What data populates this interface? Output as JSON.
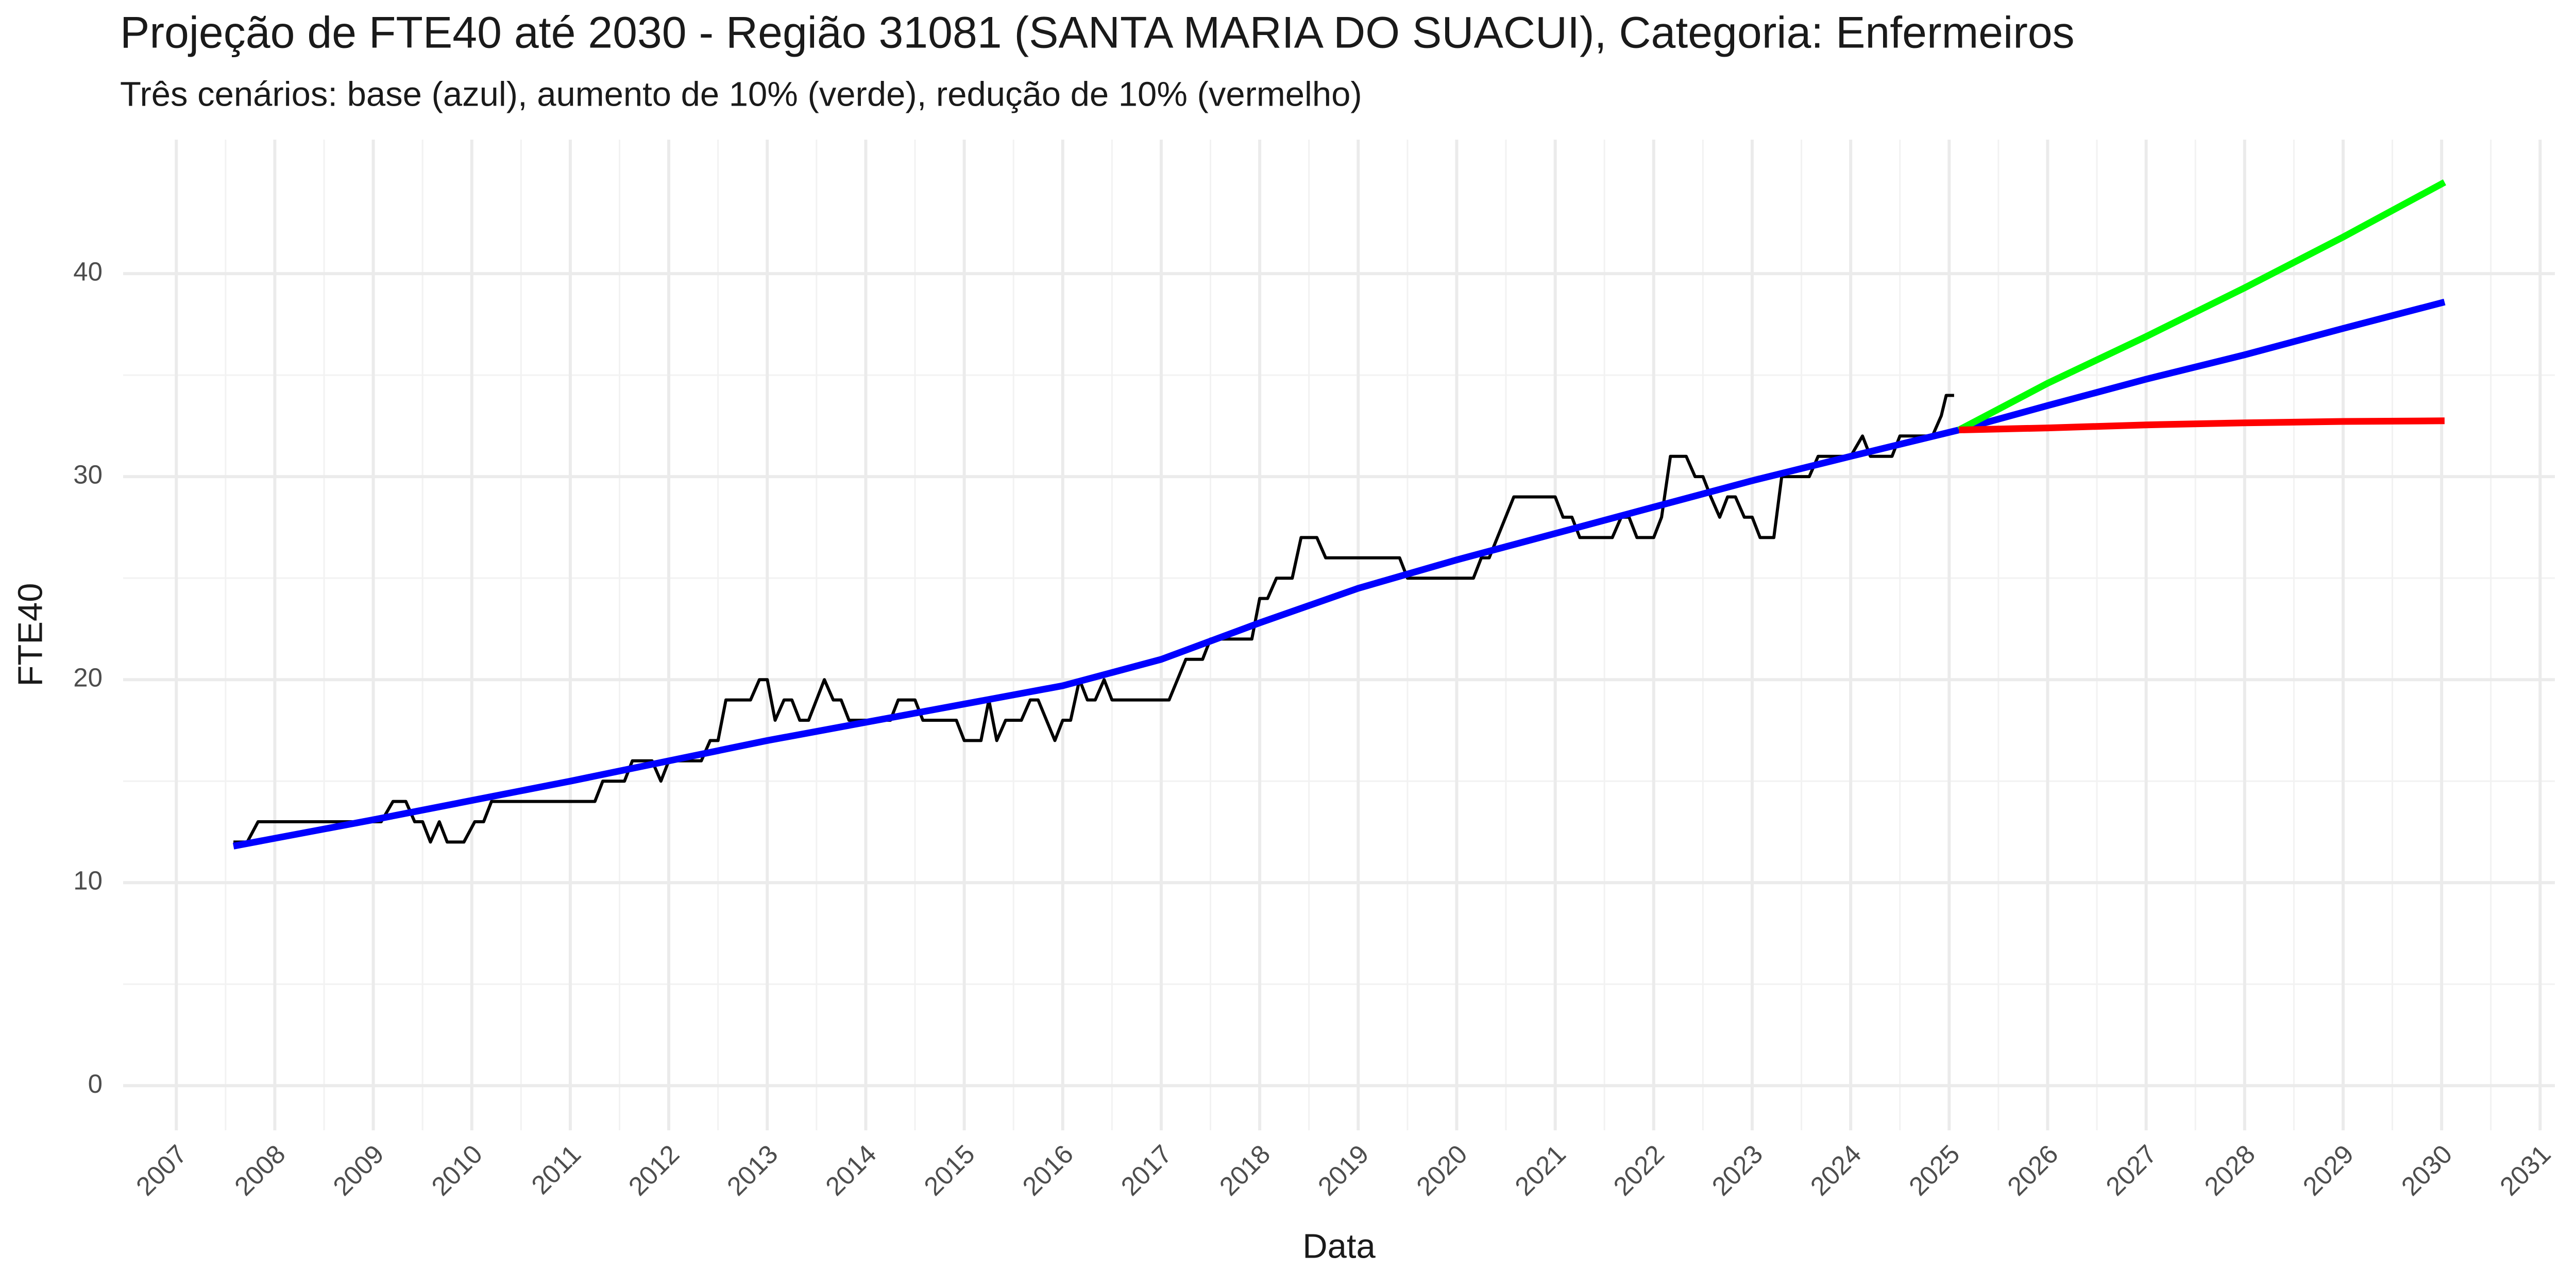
{
  "chart_data": {
    "type": "line",
    "title": "Projeção de FTE40 até 2030 - Região 31081 (SANTA MARIA DO SUACUI), Categoria: Enfermeiros",
    "subtitle": "Três cenários: base (azul), aumento de 10% (verde), redução de 10% (vermelho)",
    "x_label": "Data",
    "y_label": "FTE40",
    "xlim": [
      2006.46,
      2031.15
    ],
    "xticks": [
      2007,
      2008,
      2009,
      2010,
      2011,
      2012,
      2013,
      2014,
      2015,
      2016,
      2017,
      2018,
      2019,
      2020,
      2021,
      2022,
      2023,
      2024,
      2025,
      2026,
      2027,
      2028,
      2029,
      2030,
      2031
    ],
    "ylim": [
      -2.2,
      46.6
    ],
    "yticks": [
      0,
      10,
      20,
      30,
      40
    ],
    "grid": true,
    "series": [
      {
        "color": "#000000",
        "width": 6,
        "x": [
          2007.58,
          2007.72,
          2007.83,
          2009.08,
          2009.2,
          2009.33,
          2009.42,
          2009.5,
          2009.58,
          2009.67,
          2009.75,
          2009.92,
          2010.03,
          2010.12,
          2010.2,
          2011.25,
          2011.33,
          2011.55,
          2011.63,
          2011.83,
          2011.92,
          2012.0,
          2012.33,
          2012.42,
          2012.5,
          2012.58,
          2012.83,
          2012.92,
          2013.0,
          2013.08,
          2013.17,
          2013.25,
          2013.33,
          2013.42,
          2013.58,
          2013.67,
          2013.75,
          2013.83,
          2014.25,
          2014.33,
          2014.5,
          2014.58,
          2014.92,
          2015.0,
          2015.17,
          2015.25,
          2015.33,
          2015.42,
          2015.58,
          2015.67,
          2015.75,
          2015.92,
          2016.0,
          2016.08,
          2016.17,
          2016.25,
          2016.33,
          2016.42,
          2016.5,
          2017.08,
          2017.25,
          2017.42,
          2017.5,
          2017.92,
          2018.0,
          2018.08,
          2018.17,
          2018.33,
          2018.42,
          2018.58,
          2018.67,
          2019.42,
          2019.5,
          2020.17,
          2020.25,
          2020.33,
          2020.58,
          2021.0,
          2021.08,
          2021.17,
          2021.25,
          2021.58,
          2021.67,
          2021.75,
          2021.83,
          2022.0,
          2022.08,
          2022.17,
          2022.33,
          2022.42,
          2022.5,
          2022.58,
          2022.67,
          2022.75,
          2022.83,
          2022.92,
          2023.0,
          2023.08,
          2023.22,
          2023.3,
          2023.58,
          2023.67,
          2024.0,
          2024.12,
          2024.2,
          2024.42,
          2024.5,
          2024.83,
          2024.92,
          2024.97,
          2025.05
        ],
        "values": [
          12,
          12,
          13,
          13,
          14,
          14,
          13,
          13,
          12,
          13,
          12,
          12,
          13,
          13,
          14,
          14,
          15,
          15,
          16,
          16,
          15,
          16,
          16,
          17,
          17,
          19,
          19,
          20,
          20,
          18,
          19,
          19,
          18,
          18,
          20,
          19,
          19,
          18,
          18,
          19,
          19,
          18,
          18,
          17,
          17,
          19,
          17,
          18,
          18,
          19,
          19,
          17,
          18,
          18,
          20,
          19,
          19,
          20,
          19,
          19,
          21,
          21,
          22,
          22,
          24,
          24,
          25,
          25,
          27,
          27,
          26,
          26,
          25,
          25,
          26,
          26,
          29,
          29,
          28,
          28,
          27,
          27,
          28,
          28,
          27,
          27,
          28,
          31,
          31,
          30,
          30,
          29,
          28,
          29,
          29,
          28,
          28,
          27,
          27,
          30,
          30,
          31,
          31,
          32,
          31,
          31,
          32,
          32,
          33,
          34,
          34
        ]
      },
      {
        "color": "#0000ff",
        "width": 13,
        "x": [
          2007.58,
          2009,
          2011,
          2013,
          2015,
          2016,
          2017,
          2018,
          2019,
          2020,
          2021,
          2022,
          2023,
          2024,
          2025.1,
          2026,
          2027,
          2028,
          2029,
          2030.03
        ],
        "values": [
          11.8,
          13.1,
          15,
          17,
          18.8,
          19.7,
          21,
          22.8,
          24.5,
          25.9,
          27.2,
          28.5,
          29.8,
          31,
          32.3,
          33.5,
          34.8,
          36,
          37.3,
          38.6
        ]
      },
      {
        "color": "#00ff00",
        "width": 13,
        "x": [
          2025.1,
          2026,
          2027,
          2028,
          2029,
          2030.03
        ],
        "values": [
          32.3,
          34.6,
          36.9,
          39.3,
          41.8,
          44.5
        ]
      },
      {
        "color": "#ff0000",
        "width": 13,
        "x": [
          2025.1,
          2026,
          2027,
          2028,
          2029,
          2030.03
        ],
        "values": [
          32.3,
          32.4,
          32.55,
          32.65,
          32.72,
          32.75
        ]
      }
    ]
  }
}
